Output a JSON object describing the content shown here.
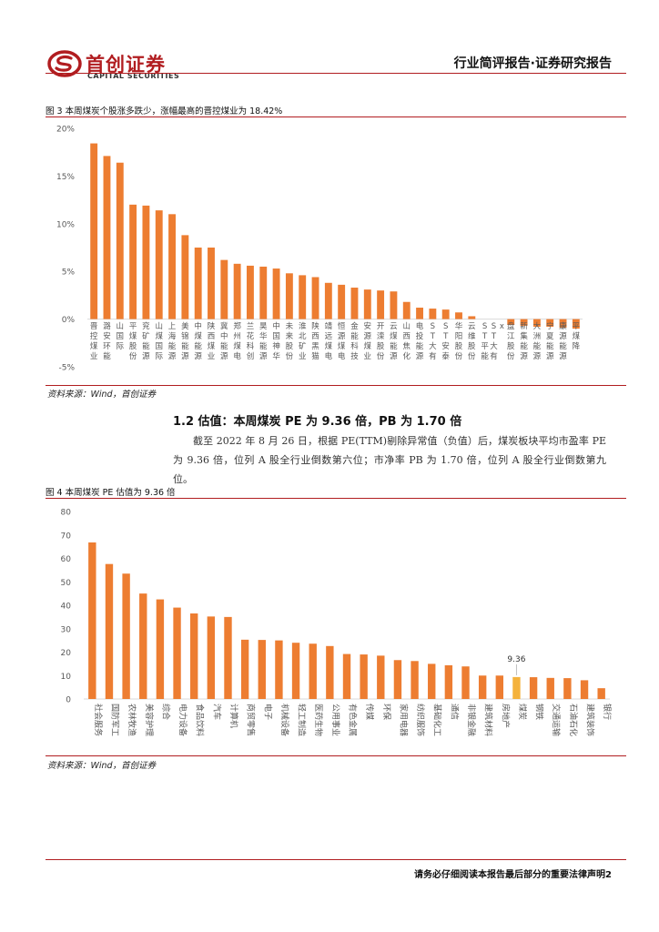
{
  "header": {
    "logo_name": "首创证券",
    "logo_en": "CAPITAL SECURITIES",
    "report_type": "行业简评报告·证券研究报告"
  },
  "figure3": {
    "title": "图 3 本周煤炭个股涨多跌少，涨幅最高的晋控煤业为 18.42%",
    "source": "资料来源：Wind，首创证券"
  },
  "section": {
    "heading": "1.2 估值：本周煤炭 PE 为 9.36 倍，PB 为 1.70 倍",
    "paragraph": "截至 2022 年 8 月 26 日，根据 PE(TTM)剔除异常值（负值）后，煤炭板块平均市盈率 PE 为 9.36 倍，位列 A 股全行业倒数第六位；市净率 PB 为 1.70 倍，位列 A 股全行业倒数第九位。"
  },
  "figure4": {
    "title": "图 4 本周煤炭 PE 估值为 9.36 倍",
    "source": "资料来源：Wind，首创证券"
  },
  "footer": {
    "text": "请务必仔细阅读本报告最后部分的重要法律声明2"
  },
  "colors": {
    "brand": "#b11d20",
    "bar": "#ed7d31",
    "highlight": "#f4b23c",
    "axis_text": "#595959"
  },
  "chart_data": [
    {
      "id": "stock-returns",
      "type": "bar",
      "title": "图 3 本周煤炭个股涨多跌少，涨幅最高的晋控煤业为 18.42%",
      "ylabel": "",
      "ylim": [
        -5,
        20
      ],
      "yticks": [
        -5,
        0,
        5,
        10,
        15,
        20
      ],
      "ytick_format": "percent",
      "grid": false,
      "categories": [
        "晋控煤业",
        "潞安环能",
        "山国际",
        "平煤股份",
        "兖矿能源",
        "山煤国际",
        "上海能源",
        "美锦能源",
        "中煤能源",
        "陕西煤业",
        "冀中能源",
        "郑州煤电",
        "兰花科创",
        "昊华能源",
        "中国神华",
        "未来股份",
        "淮北矿业",
        "陕西黑猫",
        "靖远煤电",
        "恒源煤电",
        "金能科技",
        "安源煤业",
        "开滦股份",
        "云煤能源",
        "山西焦化",
        "电投能源",
        "ST大有",
        "ST安泰",
        "华阳股份",
        "云维股份",
        "ST平能",
        "ST大有x",
        "盘江股份",
        "新集能源",
        "大洲能源",
        "宁夏能源",
        "康源能源",
        "平煤降"
      ],
      "values": [
        18.42,
        17.1,
        16.4,
        12.0,
        11.9,
        11.4,
        11.0,
        8.8,
        7.5,
        7.5,
        6.2,
        5.8,
        5.6,
        5.5,
        5.3,
        4.8,
        4.6,
        4.4,
        3.8,
        3.6,
        3.3,
        3.1,
        3.0,
        2.9,
        1.8,
        1.2,
        1.1,
        1.0,
        0.7,
        0.3,
        0.0,
        0.0,
        -0.6,
        -0.7,
        -0.8,
        -0.8,
        -0.9,
        -1.0
      ]
    },
    {
      "id": "industry-pe",
      "type": "bar",
      "title": "图 4 本周煤炭 PE 估值为 9.36 倍",
      "ylabel": "",
      "ylim": [
        0,
        80
      ],
      "yticks": [
        0,
        10,
        20,
        30,
        40,
        50,
        60,
        70,
        80
      ],
      "ytick_format": "number",
      "grid": false,
      "highlight_category": "煤炭",
      "highlight_label": "9.36",
      "categories": [
        "社会服务",
        "国防军工",
        "农林牧渔",
        "美容护理",
        "综合",
        "电力设备",
        "食品饮料",
        "汽车",
        "计算机",
        "商贸零售",
        "电子",
        "机械设备",
        "轻工制造",
        "医药生物",
        "公用事业",
        "有色金属",
        "传媒",
        "环保",
        "家用电器",
        "纺织服饰",
        "基础化工",
        "通信",
        "非银金融",
        "建筑材料",
        "房地产",
        "煤炭",
        "钢铁",
        "交通运输",
        "石油石化",
        "建筑装饰",
        "银行"
      ],
      "values": [
        66.8,
        57.6,
        53.5,
        45.0,
        42.5,
        39.0,
        36.5,
        35.2,
        35.0,
        25.3,
        25.2,
        25.0,
        24.0,
        23.6,
        22.6,
        19.2,
        19.0,
        18.5,
        16.6,
        16.2,
        15.0,
        14.4,
        13.9,
        10.0,
        10.0,
        9.36,
        9.3,
        9.0,
        8.9,
        8.0,
        4.6
      ]
    }
  ]
}
